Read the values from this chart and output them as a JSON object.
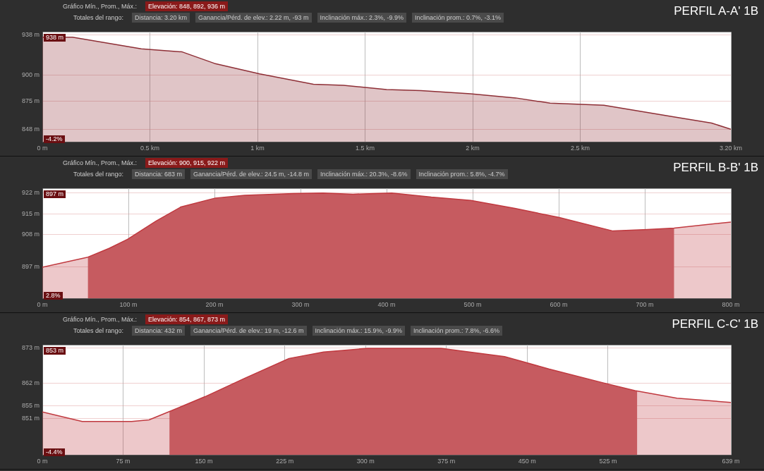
{
  "chart_data": [
    {
      "type": "area",
      "title": "PERFIL A-A' 1B",
      "annotations": [
        "Gráfico Mín., Prom., Máx.:",
        "Elevación: 848, 892, 936 m",
        "Totales del rango:",
        "Distancia: 3.20 km",
        "Ganancia/Pérd. de elev.: 2.22 m, -93 m",
        "Inclinación máx.: 2.3%, -9.9%",
        "Inclinación prom.: 0.7%, -3.1%",
        "938 m",
        "-4.2%"
      ],
      "x": [
        0,
        0.14,
        0.46,
        0.65,
        0.8,
        1.01,
        1.26,
        1.4,
        1.6,
        1.76,
        1.99,
        2.2,
        2.36,
        2.61,
        2.93,
        3.11,
        3.2
      ],
      "series": [
        {
          "color": "#8e2f36",
          "values": [
            936,
            936,
            925,
            922,
            911,
            901,
            891,
            890,
            886,
            885,
            882,
            878,
            873,
            871,
            860,
            854,
            848
          ]
        }
      ],
      "xlim": [
        0,
        3.2
      ],
      "xticks": [
        {
          "value": 0,
          "label": "0 m"
        },
        {
          "value": 0.5,
          "label": "0.5 km"
        },
        {
          "value": 1,
          "label": "1 km"
        },
        {
          "value": 1.5,
          "label": "1.5 km"
        },
        {
          "value": 2,
          "label": "2 km"
        },
        {
          "value": 2.5,
          "label": "2.5 km"
        },
        {
          "value": 3.2,
          "label": "3.20 km"
        }
      ],
      "ylim": [
        836,
        941
      ],
      "yticks": [
        {
          "value": 848,
          "label": "848 m"
        },
        {
          "value": 875,
          "label": "875 m"
        },
        {
          "value": 900,
          "label": "900 m"
        },
        {
          "value": 938,
          "label": "938 m"
        }
      ],
      "grid": true
    },
    {
      "type": "area",
      "title": "PERFIL B-B' 1B",
      "annotations": [
        "Gráfico Mín., Prom., Máx.:",
        "Elevación: 900, 915, 922 m",
        "Totales del rango:",
        "Distancia: 683 m",
        "Ganancia/Pérd. de elev.: 24.5 m, -14.8 m",
        "Inclinación máx.: 20.3%, -8.6%",
        "Inclinación prom.: 5.8%, -4.7%",
        "897 m",
        "2.8%"
      ],
      "x": [
        0,
        52,
        78,
        99,
        132,
        161,
        201,
        235,
        292,
        326,
        361,
        406,
        452,
        498,
        549,
        600,
        663,
        703,
        734,
        800
      ],
      "series": [
        {
          "color": "#c0393f",
          "values": [
            897,
            900.3,
            903.4,
            906.4,
            912.5,
            917.3,
            920.3,
            921.2,
            921.8,
            922,
            921.6,
            922,
            920.6,
            919.5,
            916.8,
            913.8,
            909.2,
            909.7,
            910.2,
            912.2
          ]
        }
      ],
      "xlim": [
        0,
        800
      ],
      "xticks": [
        {
          "value": 0,
          "label": "0 m"
        },
        {
          "value": 100,
          "label": "100 m"
        },
        {
          "value": 200,
          "label": "200 m"
        },
        {
          "value": 300,
          "label": "300 m"
        },
        {
          "value": 400,
          "label": "400 m"
        },
        {
          "value": 500,
          "label": "500 m"
        },
        {
          "value": 600,
          "label": "600 m"
        },
        {
          "value": 700,
          "label": "700 m"
        },
        {
          "value": 800,
          "label": "800 m"
        }
      ],
      "ylim": [
        886.5,
        923.5
      ],
      "yticks": [
        {
          "value": 897,
          "label": "897 m"
        },
        {
          "value": 908,
          "label": "908 m"
        },
        {
          "value": 915,
          "label": "915 m"
        },
        {
          "value": 922,
          "label": "922 m"
        }
      ],
      "bands": [
        {
          "axis": "x",
          "from": 53,
          "to": 734,
          "color": "#c9686c"
        }
      ],
      "grid": true
    },
    {
      "type": "area",
      "title": "PERFIL C-C' 1B",
      "annotations": [
        "Gráfico Mín., Prom., Máx.:",
        "Elevación: 854, 867, 873 m",
        "Totales del rango:",
        "Distancia: 432 m",
        "Ganancia/Pérd. de elev.: 19 m, -12.6 m",
        "Inclinación máx.: 15.9%, -9.9%",
        "Inclinación prom.: 7.8%, -6.6%",
        "853 m",
        "-4.4%"
      ],
      "x": [
        0,
        37,
        83,
        99,
        117,
        151,
        188,
        229,
        261,
        302,
        370,
        429,
        470,
        521,
        550,
        589,
        639
      ],
      "series": [
        {
          "color": "#c0393f",
          "values": [
            853,
            850,
            850,
            850.5,
            853,
            857.8,
            863.6,
            869.8,
            871.8,
            873,
            873,
            870.4,
            866.5,
            862.1,
            859.7,
            857.3,
            856
          ]
        }
      ],
      "xlim": [
        0,
        639
      ],
      "xticks": [
        {
          "value": 0,
          "label": "0 m"
        },
        {
          "value": 75,
          "label": "75 m"
        },
        {
          "value": 150,
          "label": "150 m"
        },
        {
          "value": 225,
          "label": "225 m"
        },
        {
          "value": 300,
          "label": "300 m"
        },
        {
          "value": 375,
          "label": "375 m"
        },
        {
          "value": 450,
          "label": "450 m"
        },
        {
          "value": 525,
          "label": "525 m"
        },
        {
          "value": 639,
          "label": "639 m"
        }
      ],
      "ylim": [
        839.5,
        874
      ],
      "yticks": [
        {
          "value": 851,
          "label": "851 m"
        },
        {
          "value": 855,
          "label": "855 m"
        },
        {
          "value": 862,
          "label": "862 m"
        },
        {
          "value": 873,
          "label": "873 m"
        }
      ],
      "bands": [
        {
          "axis": "x",
          "from": 118,
          "to": 552,
          "color": "#c9686c"
        }
      ],
      "grid": true
    }
  ]
}
